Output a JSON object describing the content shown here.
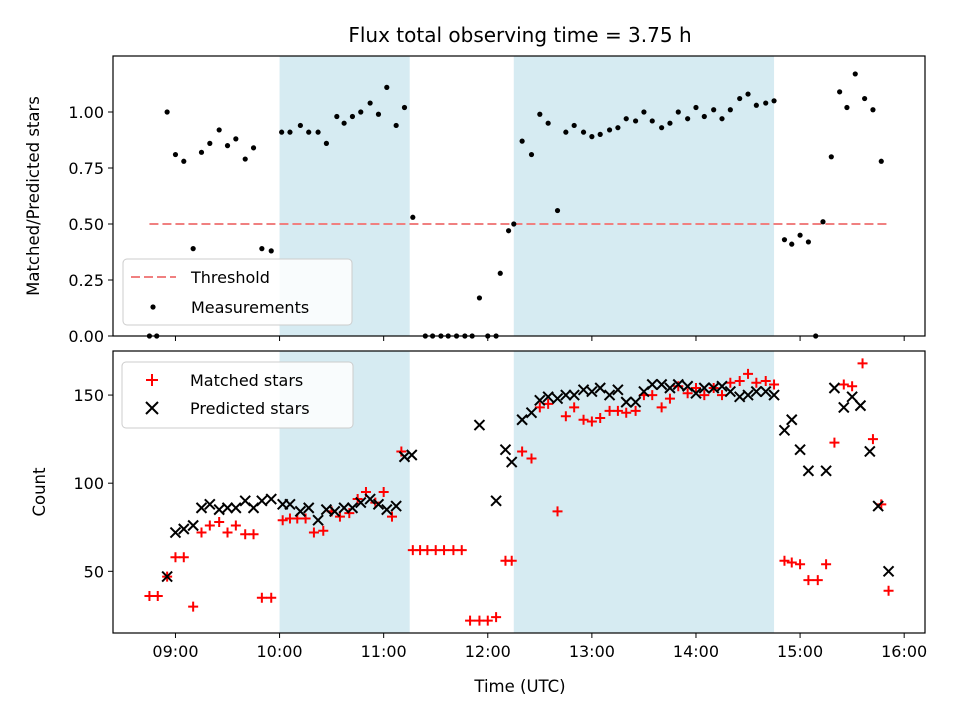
{
  "figure": {
    "title": "Flux total observing time = 3.75 h",
    "xlabel": "Time (UTC)",
    "x_tick_labels": [
      "09:00",
      "10:00",
      "11:00",
      "12:00",
      "13:00",
      "14:00",
      "15:00",
      "16:00"
    ]
  },
  "colors": {
    "shade": "#add8e6",
    "threshold": "#f08080",
    "matched": "#ff0000",
    "predicted": "#000000"
  },
  "chart_data": [
    {
      "type": "scatter",
      "ylabel": "Matched/Predicted stars",
      "xlim": [
        8.4,
        16.2
      ],
      "ylim": [
        0,
        1.25
      ],
      "yticks": [
        0.0,
        0.25,
        0.5,
        0.75,
        1.0
      ],
      "y_tick_labels": [
        "0.00",
        "0.25",
        "0.50",
        "0.75",
        "1.00"
      ],
      "shaded_intervals": [
        [
          10.0,
          11.25
        ],
        [
          12.25,
          14.75
        ]
      ],
      "legend": {
        "placement": "lower-left",
        "entries": [
          "Threshold",
          "Measurements"
        ]
      },
      "threshold": {
        "name": "Threshold",
        "x": [
          8.75,
          15.85
        ],
        "y": 0.5
      },
      "series": [
        {
          "name": "Measurements",
          "points": [
            [
              8.75,
              0.0
            ],
            [
              8.82,
              0.0
            ],
            [
              8.92,
              1.0
            ],
            [
              9.0,
              0.81
            ],
            [
              9.08,
              0.78
            ],
            [
              9.17,
              0.39
            ],
            [
              9.25,
              0.82
            ],
            [
              9.33,
              0.86
            ],
            [
              9.42,
              0.92
            ],
            [
              9.5,
              0.85
            ],
            [
              9.58,
              0.88
            ],
            [
              9.67,
              0.79
            ],
            [
              9.75,
              0.84
            ],
            [
              9.83,
              0.39
            ],
            [
              9.92,
              0.38
            ],
            [
              10.02,
              0.91
            ],
            [
              10.1,
              0.91
            ],
            [
              10.2,
              0.94
            ],
            [
              10.28,
              0.91
            ],
            [
              10.37,
              0.91
            ],
            [
              10.45,
              0.86
            ],
            [
              10.55,
              0.98
            ],
            [
              10.62,
              0.95
            ],
            [
              10.7,
              0.98
            ],
            [
              10.78,
              1.0
            ],
            [
              10.87,
              1.04
            ],
            [
              10.95,
              0.99
            ],
            [
              11.03,
              1.11
            ],
            [
              11.12,
              0.94
            ],
            [
              11.2,
              1.02
            ],
            [
              11.28,
              0.53
            ],
            [
              11.4,
              0.0
            ],
            [
              11.47,
              0.0
            ],
            [
              11.55,
              0.0
            ],
            [
              11.62,
              0.0
            ],
            [
              11.7,
              0.0
            ],
            [
              11.78,
              0.0
            ],
            [
              11.85,
              0.0
            ],
            [
              11.92,
              0.17
            ],
            [
              12.0,
              0.0
            ],
            [
              12.08,
              0.0
            ],
            [
              12.12,
              0.28
            ],
            [
              12.2,
              0.47
            ],
            [
              12.25,
              0.5
            ],
            [
              12.33,
              0.87
            ],
            [
              12.42,
              0.81
            ],
            [
              12.5,
              0.99
            ],
            [
              12.58,
              0.95
            ],
            [
              12.67,
              0.56
            ],
            [
              12.75,
              0.91
            ],
            [
              12.83,
              0.94
            ],
            [
              12.92,
              0.91
            ],
            [
              13.0,
              0.89
            ],
            [
              13.08,
              0.9
            ],
            [
              13.17,
              0.92
            ],
            [
              13.25,
              0.93
            ],
            [
              13.33,
              0.97
            ],
            [
              13.42,
              0.96
            ],
            [
              13.5,
              1.0
            ],
            [
              13.58,
              0.96
            ],
            [
              13.67,
              0.93
            ],
            [
              13.75,
              0.95
            ],
            [
              13.83,
              1.0
            ],
            [
              13.92,
              0.97
            ],
            [
              14.0,
              1.02
            ],
            [
              14.08,
              0.98
            ],
            [
              14.17,
              1.01
            ],
            [
              14.25,
              0.97
            ],
            [
              14.33,
              1.01
            ],
            [
              14.42,
              1.06
            ],
            [
              14.5,
              1.08
            ],
            [
              14.58,
              1.03
            ],
            [
              14.67,
              1.04
            ],
            [
              14.75,
              1.05
            ],
            [
              14.85,
              0.43
            ],
            [
              14.92,
              0.41
            ],
            [
              15.0,
              0.45
            ],
            [
              15.08,
              0.42
            ],
            [
              15.15,
              0.0
            ],
            [
              15.22,
              0.51
            ],
            [
              15.3,
              0.8
            ],
            [
              15.38,
              1.09
            ],
            [
              15.45,
              1.02
            ],
            [
              15.53,
              1.17
            ],
            [
              15.62,
              1.06
            ],
            [
              15.7,
              1.01
            ],
            [
              15.78,
              0.78
            ]
          ]
        }
      ]
    },
    {
      "type": "scatter",
      "ylabel": "Count",
      "xlim": [
        8.4,
        16.2
      ],
      "ylim": [
        15,
        175
      ],
      "yticks": [
        50,
        100,
        150
      ],
      "y_tick_labels": [
        "50",
        "100",
        "150"
      ],
      "shaded_intervals": [
        [
          10.0,
          11.25
        ],
        [
          12.25,
          14.75
        ]
      ],
      "legend": {
        "placement": "top-left",
        "entries": [
          "Matched stars",
          "Predicted stars"
        ]
      },
      "series": [
        {
          "name": "Matched stars",
          "marker": "plus",
          "points": [
            [
              8.75,
              36
            ],
            [
              8.83,
              36
            ],
            [
              8.92,
              47
            ],
            [
              9.0,
              58
            ],
            [
              9.08,
              58
            ],
            [
              9.17,
              30
            ],
            [
              9.25,
              72
            ],
            [
              9.33,
              76
            ],
            [
              9.42,
              78
            ],
            [
              9.5,
              72
            ],
            [
              9.58,
              76
            ],
            [
              9.67,
              71
            ],
            [
              9.75,
              71
            ],
            [
              9.83,
              35
            ],
            [
              9.92,
              35
            ],
            [
              10.03,
              79
            ],
            [
              10.1,
              80
            ],
            [
              10.17,
              80
            ],
            [
              10.25,
              80
            ],
            [
              10.33,
              72
            ],
            [
              10.42,
              73
            ],
            [
              10.5,
              84
            ],
            [
              10.58,
              81
            ],
            [
              10.67,
              83
            ],
            [
              10.75,
              91
            ],
            [
              10.83,
              95
            ],
            [
              10.92,
              89
            ],
            [
              11.0,
              95
            ],
            [
              11.08,
              81
            ],
            [
              11.17,
              118
            ],
            [
              11.28,
              62
            ],
            [
              11.35,
              62
            ],
            [
              11.42,
              62
            ],
            [
              11.5,
              62
            ],
            [
              11.58,
              62
            ],
            [
              11.67,
              62
            ],
            [
              11.75,
              62
            ],
            [
              11.83,
              22
            ],
            [
              11.92,
              22
            ],
            [
              12.0,
              22
            ],
            [
              12.08,
              24
            ],
            [
              12.17,
              56
            ],
            [
              12.23,
              56
            ],
            [
              12.33,
              118
            ],
            [
              12.42,
              114
            ],
            [
              12.5,
              143
            ],
            [
              12.58,
              145
            ],
            [
              12.67,
              84
            ],
            [
              12.75,
              138
            ],
            [
              12.83,
              143
            ],
            [
              12.92,
              136
            ],
            [
              13.0,
              135
            ],
            [
              13.08,
              137
            ],
            [
              13.17,
              141
            ],
            [
              13.25,
              141
            ],
            [
              13.33,
              140
            ],
            [
              13.42,
              141
            ],
            [
              13.5,
              150
            ],
            [
              13.58,
              150
            ],
            [
              13.67,
              143
            ],
            [
              13.75,
              148
            ],
            [
              13.83,
              155
            ],
            [
              13.92,
              151
            ],
            [
              14.0,
              154
            ],
            [
              14.08,
              150
            ],
            [
              14.17,
              154
            ],
            [
              14.25,
              150
            ],
            [
              14.33,
              157
            ],
            [
              14.42,
              158
            ],
            [
              14.5,
              162
            ],
            [
              14.58,
              157
            ],
            [
              14.67,
              158
            ],
            [
              14.75,
              156
            ],
            [
              14.85,
              56
            ],
            [
              14.92,
              55
            ],
            [
              15.0,
              54
            ],
            [
              15.08,
              45
            ],
            [
              15.17,
              45
            ],
            [
              15.25,
              54
            ],
            [
              15.33,
              123
            ],
            [
              15.42,
              156
            ],
            [
              15.5,
              155
            ],
            [
              15.6,
              168
            ],
            [
              15.7,
              125
            ],
            [
              15.78,
              88
            ],
            [
              15.85,
              39
            ]
          ]
        },
        {
          "name": "Predicted stars",
          "marker": "x",
          "points": [
            [
              8.92,
              47
            ],
            [
              9.0,
              72
            ],
            [
              9.08,
              74
            ],
            [
              9.17,
              76
            ],
            [
              9.25,
              86
            ],
            [
              9.33,
              88
            ],
            [
              9.42,
              85
            ],
            [
              9.5,
              86
            ],
            [
              9.58,
              86
            ],
            [
              9.67,
              90
            ],
            [
              9.75,
              86
            ],
            [
              9.83,
              90
            ],
            [
              9.92,
              91
            ],
            [
              10.03,
              88
            ],
            [
              10.1,
              88
            ],
            [
              10.2,
              84
            ],
            [
              10.28,
              86
            ],
            [
              10.37,
              79
            ],
            [
              10.45,
              85
            ],
            [
              10.53,
              84
            ],
            [
              10.62,
              86
            ],
            [
              10.7,
              86
            ],
            [
              10.78,
              89
            ],
            [
              10.87,
              91
            ],
            [
              10.95,
              88
            ],
            [
              11.03,
              85
            ],
            [
              11.12,
              87
            ],
            [
              11.2,
              115
            ],
            [
              11.27,
              116
            ],
            [
              11.92,
              133
            ],
            [
              12.08,
              90
            ],
            [
              12.17,
              119
            ],
            [
              12.23,
              112
            ],
            [
              12.33,
              136
            ],
            [
              12.42,
              140
            ],
            [
              12.5,
              147
            ],
            [
              12.58,
              149
            ],
            [
              12.67,
              148
            ],
            [
              12.75,
              150
            ],
            [
              12.83,
              150
            ],
            [
              12.92,
              153
            ],
            [
              13.0,
              152
            ],
            [
              13.08,
              154
            ],
            [
              13.17,
              150
            ],
            [
              13.25,
              153
            ],
            [
              13.33,
              146
            ],
            [
              13.42,
              146
            ],
            [
              13.5,
              152
            ],
            [
              13.58,
              156
            ],
            [
              13.67,
              156
            ],
            [
              13.75,
              154
            ],
            [
              13.83,
              156
            ],
            [
              13.92,
              155
            ],
            [
              14.0,
              151
            ],
            [
              14.08,
              154
            ],
            [
              14.17,
              154
            ],
            [
              14.25,
              155
            ],
            [
              14.33,
              152
            ],
            [
              14.42,
              149
            ],
            [
              14.5,
              150
            ],
            [
              14.58,
              152
            ],
            [
              14.67,
              152
            ],
            [
              14.75,
              150
            ],
            [
              14.85,
              130
            ],
            [
              14.92,
              136
            ],
            [
              15.0,
              119
            ],
            [
              15.08,
              107
            ],
            [
              15.25,
              107
            ],
            [
              15.33,
              154
            ],
            [
              15.42,
              143
            ],
            [
              15.5,
              149
            ],
            [
              15.58,
              144
            ],
            [
              15.67,
              118
            ],
            [
              15.75,
              87
            ],
            [
              15.85,
              50
            ]
          ]
        }
      ]
    }
  ]
}
